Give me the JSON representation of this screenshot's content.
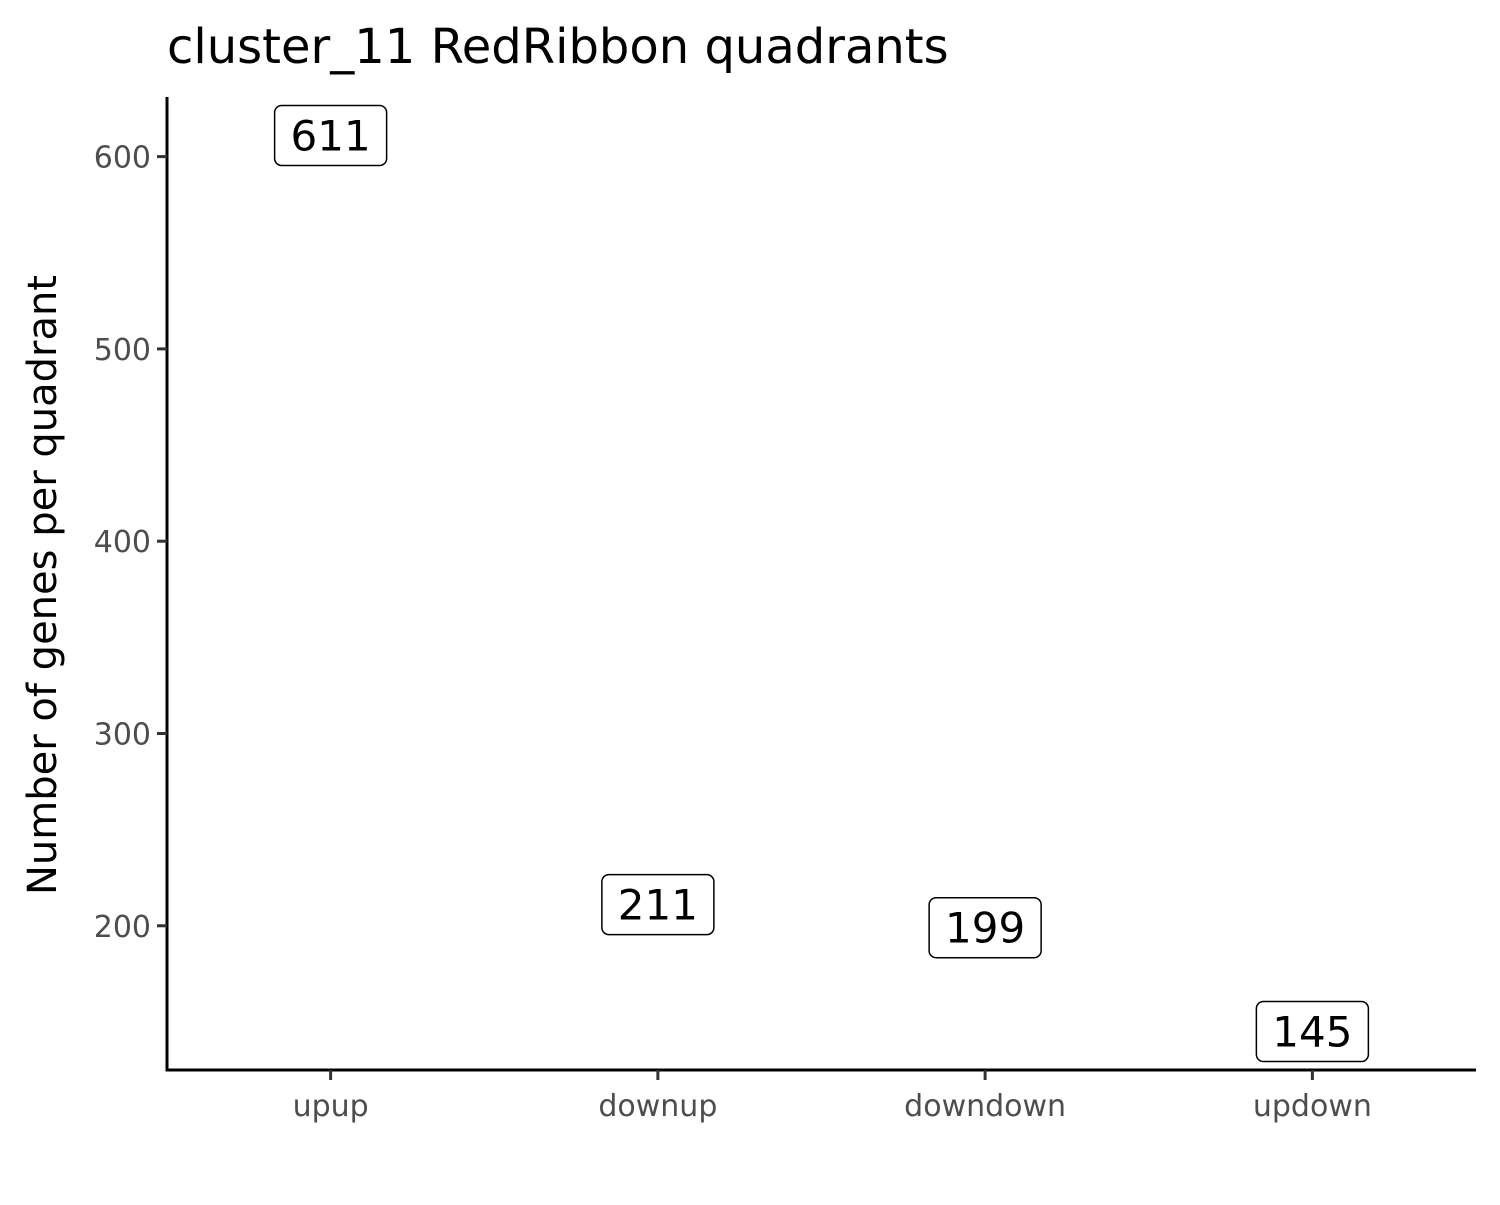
{
  "chart_data": {
    "type": "scatter",
    "title": "cluster_11 RedRibbon quadrants",
    "xlabel": "",
    "ylabel": "Number of genes per quadrant",
    "categories": [
      "upup",
      "downup",
      "downdown",
      "updown"
    ],
    "values": [
      611,
      211,
      199,
      145
    ],
    "data_labels": [
      "611",
      "211",
      "199",
      "145"
    ],
    "y_ticks": [
      200,
      300,
      400,
      500,
      600
    ],
    "y_tick_labels": [
      "200",
      "300",
      "400",
      "500",
      "600"
    ],
    "ylim": [
      125,
      631
    ],
    "grid": false,
    "legend": "none",
    "point_style": "label-box"
  }
}
